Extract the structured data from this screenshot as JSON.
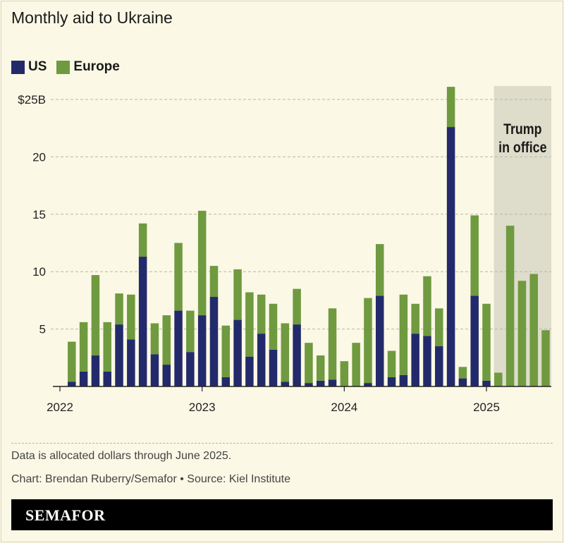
{
  "chart_data": {
    "type": "bar",
    "stacked": true,
    "title": "Monthly aid to Ukraine",
    "categories": [
      "2022-02",
      "2022-03",
      "2022-04",
      "2022-05",
      "2022-06",
      "2022-07",
      "2022-08",
      "2022-09",
      "2022-10",
      "2022-11",
      "2022-12",
      "2023-01",
      "2023-02",
      "2023-03",
      "2023-04",
      "2023-05",
      "2023-06",
      "2023-07",
      "2023-08",
      "2023-09",
      "2023-10",
      "2023-11",
      "2023-12",
      "2024-01",
      "2024-02",
      "2024-03",
      "2024-04",
      "2024-05",
      "2024-06",
      "2024-07",
      "2024-08",
      "2024-09",
      "2024-10",
      "2024-11",
      "2024-12",
      "2025-01",
      "2025-02",
      "2025-03",
      "2025-04",
      "2025-05",
      "2025-06"
    ],
    "series": [
      {
        "name": "US",
        "color": "#232a6b",
        "values": [
          0.4,
          1.3,
          2.7,
          1.3,
          5.4,
          4.1,
          11.3,
          2.8,
          1.9,
          6.6,
          3.0,
          6.2,
          7.8,
          0.8,
          5.8,
          2.6,
          4.6,
          3.2,
          0.4,
          5.4,
          0.3,
          0.5,
          0.6,
          0,
          0,
          0.3,
          7.9,
          0.8,
          1.0,
          4.6,
          4.4,
          3.5,
          22.6,
          0.7,
          7.9,
          0.5,
          0,
          0,
          0,
          0,
          0
        ]
      },
      {
        "name": "Europe",
        "color": "#6f9a40",
        "values": [
          3.5,
          4.3,
          7.0,
          4.3,
          2.7,
          3.9,
          2.9,
          2.7,
          4.3,
          5.9,
          3.6,
          9.1,
          2.7,
          4.5,
          4.4,
          5.6,
          3.4,
          4.0,
          5.1,
          3.1,
          3.5,
          2.2,
          6.2,
          2.2,
          3.8,
          7.4,
          4.5,
          2.3,
          7.0,
          2.6,
          5.2,
          3.3,
          3.5,
          1.0,
          7.0,
          6.7,
          1.2,
          14.0,
          9.2,
          9.8,
          4.9
        ]
      }
    ],
    "y_ticks": [
      {
        "value": 5,
        "label": "5"
      },
      {
        "value": 10,
        "label": "10"
      },
      {
        "value": 15,
        "label": "15"
      },
      {
        "value": 20,
        "label": "20"
      },
      {
        "value": 25,
        "label": "$25B"
      }
    ],
    "x_ticks": [
      "2022",
      "2023",
      "2024",
      "2025"
    ],
    "ylim": [
      0,
      26
    ],
    "grid": true,
    "legend_position": "top-left",
    "annotation": {
      "label_line1": "Trump",
      "label_line2": "in office",
      "start": "2025-01-20",
      "end": "2025-06",
      "color": "#dedcca"
    }
  },
  "legend": {
    "us": "US",
    "europe": "Europe"
  },
  "footer": {
    "note": "Data is allocated dollars through June 2025.",
    "credit": "Chart: Brendan Ruberry/Semafor • Source: Kiel Institute",
    "brand": "SEMAFOR"
  }
}
